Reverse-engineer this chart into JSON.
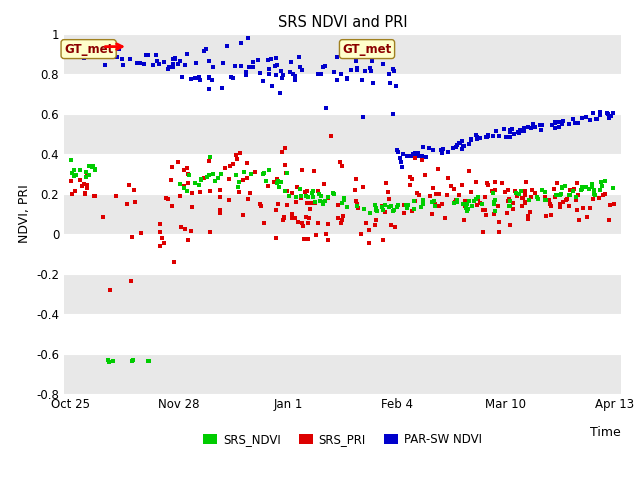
{
  "title": "SRS NDVI and PRI",
  "xlabel": "Time",
  "ylabel": "NDVI, PRI",
  "ylim": [
    -0.8,
    1.0
  ],
  "yticks": [
    -0.8,
    -0.6,
    -0.4,
    -0.2,
    0.0,
    0.2,
    0.4,
    0.6,
    0.8,
    1.0
  ],
  "xtick_labels": [
    "Oct 25",
    "Nov 28",
    "Jan 1",
    "Feb 4",
    "Mar 10",
    "Apr 13"
  ],
  "xtick_positions": [
    0,
    34,
    68,
    102,
    136,
    170
  ],
  "background_color": "#ffffff",
  "plot_bg_color": "#ffffff",
  "band_color": "#e8e8e8",
  "gt_box_color": "#ffffcc",
  "gt_text_color": "#8b0000",
  "gt_border_color": "#a08020",
  "legend_markers": [
    "SRS_NDVI",
    "SRS_PRI",
    "PAR-SW NDVI"
  ],
  "legend_colors": [
    "#00cc00",
    "#dd0000",
    "#0000cc"
  ],
  "annotation_text": "GT_met",
  "red_arrow_color": "#ff0000",
  "srs_ndvi_color": "#00cc00",
  "srs_pri_color": "#dd0000",
  "par_sw_color": "#0000cc",
  "marker_size": 3
}
